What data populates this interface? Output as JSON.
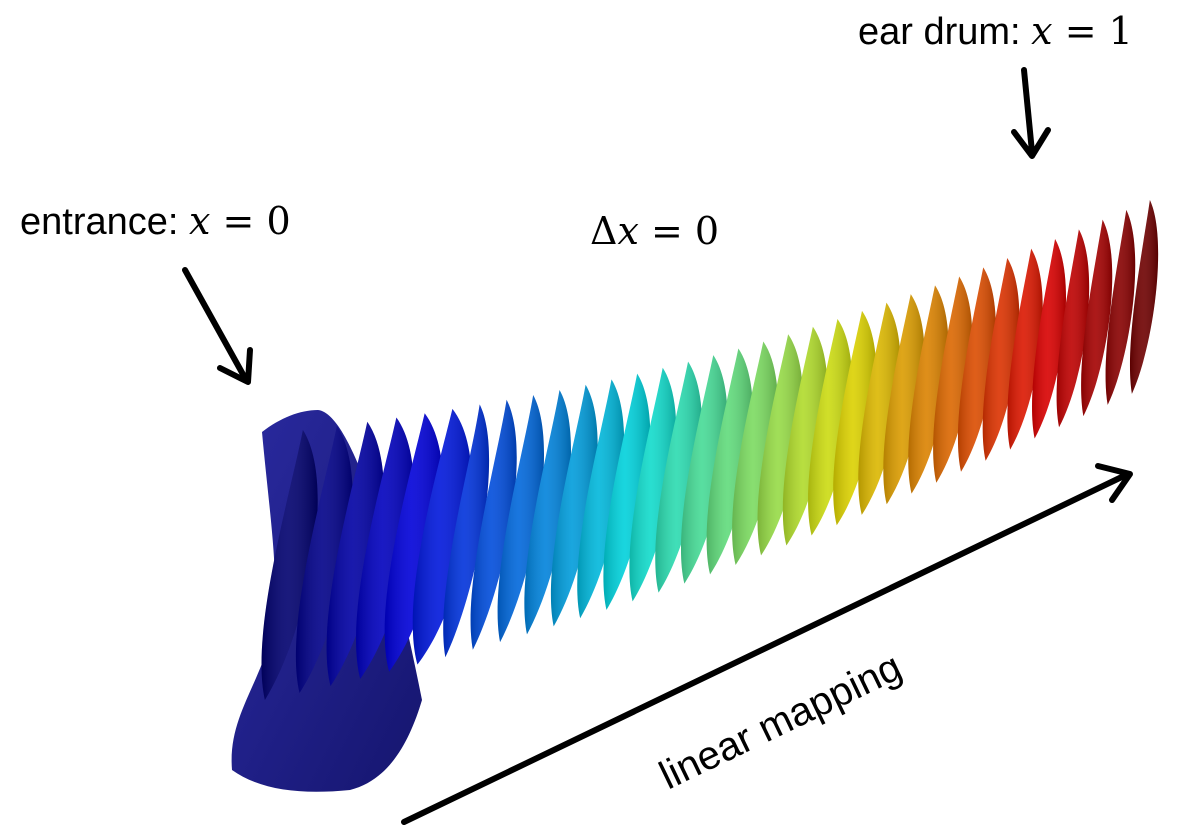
{
  "labels": {
    "ear_drum": {
      "text": "ear drum: ",
      "var": "x",
      "eq": " = ",
      "val": "1"
    },
    "entrance": {
      "text": "entrance: ",
      "var": "x",
      "eq": " = ",
      "val": "0"
    },
    "delta": {
      "sym": "Δ",
      "var": "x",
      "eq": " = ",
      "val": "0"
    },
    "mapping": "linear mapping"
  },
  "colors": {
    "text": "#000000",
    "arrow": "#000000",
    "colormap": "jet",
    "colormap_start": "#1a1a8c",
    "colormap_end": "#8a0a0a"
  }
}
